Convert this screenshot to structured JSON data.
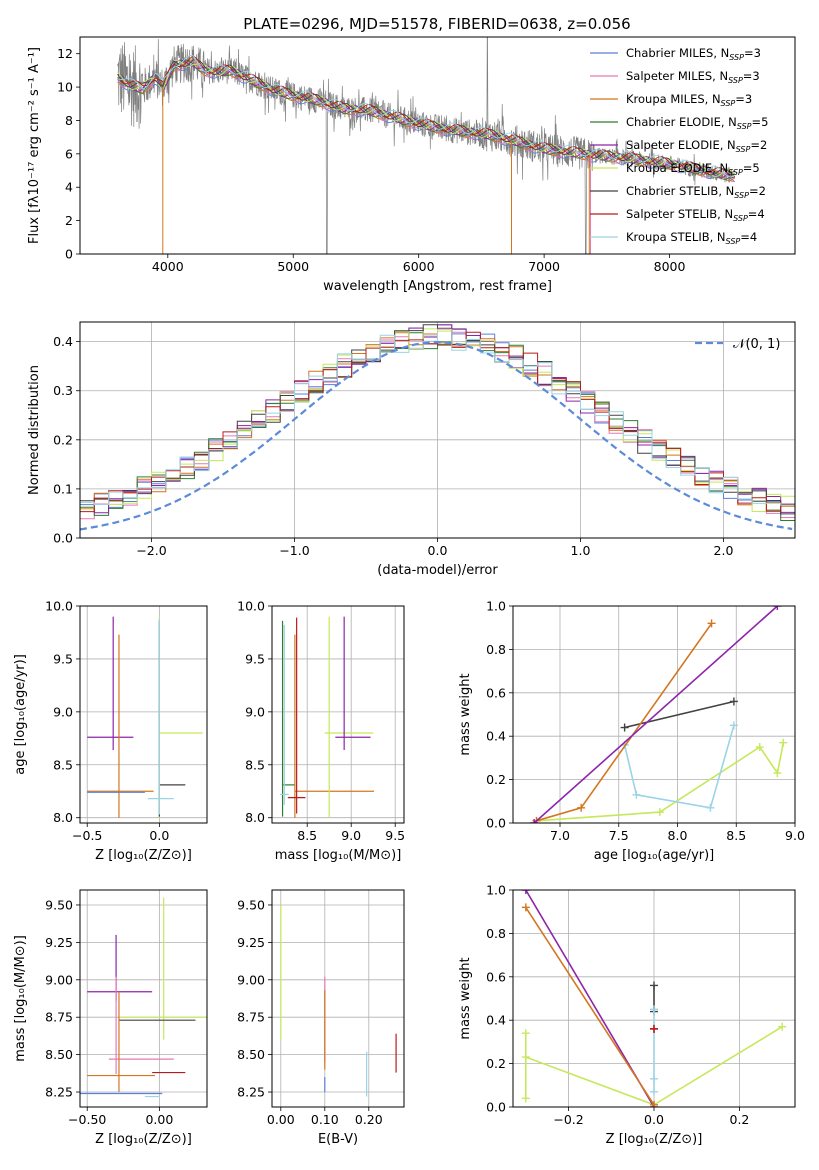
{
  "figure_title": "PLATE=0296, MJD=51578, FIBERID=0638, z=0.056",
  "colors": {
    "Chabrier MILES": "#5b7fd9",
    "Salpeter MILES": "#e37ab9",
    "Kroupa MILES": "#d4761f",
    "Chabrier ELODIE": "#2e7d32",
    "Salpeter ELODIE": "#8e24aa",
    "Kroupa ELODIE": "#c6e85a",
    "Chabrier STELIB": "#424242",
    "Salpeter STELIB": "#b71c1c",
    "Kroupa STELIB": "#9ad4e6",
    "data": "#808080",
    "normal": "#5b8bd9"
  },
  "chart_data": [
    {
      "id": "spectrum",
      "type": "line",
      "xlabel": "wavelength [Angstrom, rest frame]",
      "ylabel": "Flux [fλ10⁻¹⁷ erg cm⁻² s⁻¹ A⁻¹]",
      "xlim": [
        3300,
        9000
      ],
      "ylim": [
        0,
        13
      ],
      "xticks": [
        4000,
        5000,
        6000,
        7000,
        8000
      ],
      "yticks": [
        0,
        2,
        4,
        6,
        8,
        10,
        12
      ],
      "legend_position": "top-right",
      "legend": [
        {
          "label": "Chabrier MILES, N",
          "sub": "SSP",
          "tail": "=3",
          "key": "Chabrier MILES"
        },
        {
          "label": "Salpeter MILES, N",
          "sub": "SSP",
          "tail": "=3",
          "key": "Salpeter MILES"
        },
        {
          "label": "Kroupa MILES, N",
          "sub": "SSP",
          "tail": "=3",
          "key": "Kroupa MILES"
        },
        {
          "label": "Chabrier ELODIE, N",
          "sub": "SSP",
          "tail": "=5",
          "key": "Chabrier ELODIE"
        },
        {
          "label": "Salpeter ELODIE, N",
          "sub": "SSP",
          "tail": "=2",
          "key": "Salpeter ELODIE"
        },
        {
          "label": "Kroupa ELODIE, N",
          "sub": "SSP",
          "tail": "=5",
          "key": "Kroupa ELODIE"
        },
        {
          "label": "Chabrier STELIB, N",
          "sub": "SSP",
          "tail": "=2",
          "key": "Chabrier STELIB"
        },
        {
          "label": "Salpeter STELIB, N",
          "sub": "SSP",
          "tail": "=4",
          "key": "Salpeter STELIB"
        },
        {
          "label": "Kroupa STELIB, N",
          "sub": "SSP",
          "tail": "=4",
          "key": "Kroupa STELIB"
        }
      ],
      "continuum": [
        [
          3600,
          10.6
        ],
        [
          3700,
          10.1
        ],
        [
          3800,
          9.9
        ],
        [
          3900,
          10.6
        ],
        [
          3960,
          10.0
        ],
        [
          4050,
          11.3
        ],
        [
          4200,
          11.5
        ],
        [
          4300,
          11.0
        ],
        [
          4400,
          10.9
        ],
        [
          4500,
          11.0
        ],
        [
          4700,
          10.3
        ],
        [
          4850,
          9.8
        ],
        [
          5000,
          9.5
        ],
        [
          5200,
          9.2
        ],
        [
          5400,
          8.7
        ],
        [
          5600,
          8.6
        ],
        [
          5800,
          8.2
        ],
        [
          6000,
          7.8
        ],
        [
          6200,
          7.5
        ],
        [
          6400,
          7.3
        ],
        [
          6600,
          7.1
        ],
        [
          6800,
          6.7
        ],
        [
          7000,
          6.3
        ],
        [
          7200,
          6.1
        ],
        [
          7400,
          5.9
        ],
        [
          7600,
          5.8
        ],
        [
          7800,
          5.6
        ],
        [
          8000,
          5.4
        ],
        [
          8200,
          5.1
        ],
        [
          8400,
          4.8
        ],
        [
          8500,
          4.7
        ]
      ]
    },
    {
      "id": "residuals",
      "type": "bar",
      "xlabel": "(data-model)/error",
      "ylabel": "Normed distribution",
      "xlim": [
        -2.5,
        2.5
      ],
      "ylim": [
        0,
        0.44
      ],
      "xticks": [
        -2,
        -1,
        0,
        1,
        2
      ],
      "yticks": [
        0.0,
        0.1,
        0.2,
        0.3,
        0.4
      ],
      "legend_label": "𝒩(0, 1)",
      "legend_position": "top-right",
      "bin_width": 0.1
    },
    {
      "id": "age_vs_Z",
      "type": "scatter",
      "xlabel": "Z [log₁₀(Z/Z⊙)]",
      "ylabel": "age  [log₁₀(age/yr)]",
      "xlim": [
        -0.55,
        0.33
      ],
      "ylim": [
        7.95,
        10.0
      ],
      "xticks": [
        -0.5,
        0.0
      ],
      "yticks": [
        8.0,
        8.5,
        9.0,
        9.5,
        10.0
      ],
      "points": [
        {
          "key": "Salpeter ELODIE",
          "x": -0.32,
          "y": 8.76,
          "xerr": [
            0.18,
            0.14
          ],
          "yerr": [
            0.12,
            1.14
          ]
        },
        {
          "key": "Kroupa MILES",
          "x": -0.28,
          "y": 8.25,
          "xerr": [
            0.22,
            0.24
          ],
          "yerr": [
            0.25,
            1.48
          ]
        },
        {
          "key": "Chabrier MILES",
          "x": -0.3,
          "y": 8.24,
          "xerr": [
            0.2,
            0.2
          ],
          "yerr": [
            0.0,
            0.0
          ]
        },
        {
          "key": "Kroupa ELODIE",
          "x": 0.0,
          "y": 8.8,
          "xerr": [
            0.0,
            0.3
          ],
          "yerr": [
            0.8,
            1.1
          ]
        },
        {
          "key": "Chabrier STELIB",
          "x": 0.0,
          "y": 8.31,
          "xerr": [
            0.0,
            0.18
          ],
          "yerr": [
            0.3,
            1.55
          ]
        },
        {
          "key": "Kroupa STELIB",
          "x": 0.0,
          "y": 8.18,
          "xerr": [
            0.08,
            0.1
          ],
          "yerr": [
            0.15,
            1.7
          ]
        }
      ]
    },
    {
      "id": "age_vs_mass",
      "type": "scatter",
      "xlabel": "mass [log₁₀(M/M⊙)]",
      "ylabel": "",
      "xlim": [
        8.1,
        9.6
      ],
      "ylim": [
        7.95,
        10.0
      ],
      "xticks": [
        8.5,
        9.0,
        9.5
      ],
      "yticks": [
        8.0,
        8.5,
        9.0,
        9.5,
        10.0
      ],
      "points": [
        {
          "key": "Chabrier ELODIE",
          "x": 8.22,
          "y": 8.31,
          "xerr": [
            0.0,
            0.14
          ],
          "yerr": [
            0.3,
            1.55
          ]
        },
        {
          "key": "Kroupa MILES",
          "x": 8.36,
          "y": 8.25,
          "xerr": [
            0.0,
            0.9
          ],
          "yerr": [
            0.25,
            1.48
          ]
        },
        {
          "key": "Salpeter STELIB",
          "x": 8.38,
          "y": 8.19,
          "xerr": [
            0.1,
            0.1
          ],
          "yerr": [
            0.15,
            1.7
          ]
        },
        {
          "key": "Kroupa ELODIE",
          "x": 8.75,
          "y": 8.8,
          "xerr": [
            0.05,
            0.5
          ],
          "yerr": [
            0.8,
            1.1
          ]
        },
        {
          "key": "Salpeter ELODIE",
          "x": 8.92,
          "y": 8.76,
          "xerr": [
            0.1,
            0.3
          ],
          "yerr": [
            0.12,
            1.14
          ]
        },
        {
          "key": "Kroupa STELIB",
          "x": 8.24,
          "y": 8.22,
          "xerr": [
            0.05,
            0.05
          ],
          "yerr": [
            0.1,
            1.6
          ]
        }
      ]
    },
    {
      "id": "massweight_vs_age",
      "type": "line",
      "xlabel": "age  [log₁₀(age/yr)]",
      "ylabel": "mass weight",
      "xlim": [
        6.6,
        9.0
      ],
      "ylim": [
        0,
        1.0
      ],
      "xticks": [
        7.0,
        7.5,
        8.0,
        8.5,
        9.0
      ],
      "yticks": [
        0.0,
        0.2,
        0.4,
        0.6,
        0.8,
        1.0
      ],
      "series": [
        {
          "key": "Kroupa ELODIE",
          "x": [
            6.8,
            7.85,
            8.7,
            8.85,
            8.9
          ],
          "y": [
            0.01,
            0.05,
            0.35,
            0.23,
            0.37
          ]
        },
        {
          "key": "Kroupa STELIB",
          "x": [
            7.55,
            7.65,
            8.28,
            8.48
          ],
          "y": [
            0.36,
            0.13,
            0.07,
            0.45
          ]
        },
        {
          "key": "Chabrier STELIB",
          "x": [
            7.55,
            8.48
          ],
          "y": [
            0.44,
            0.56
          ]
        },
        {
          "key": "Kroupa MILES",
          "x": [
            6.8,
            7.18,
            8.29
          ],
          "y": [
            0.01,
            0.07,
            0.92
          ]
        },
        {
          "key": "Salpeter ELODIE",
          "x": [
            6.78,
            8.85
          ],
          "y": [
            0.0,
            1.0
          ]
        }
      ]
    },
    {
      "id": "mass_vs_Z",
      "type": "scatter",
      "xlabel": "Z [log₁₀(Z/Z⊙)]",
      "ylabel": "mass [log₁₀(M/M⊙)]",
      "xlim": [
        -0.55,
        0.33
      ],
      "ylim": [
        8.15,
        9.6
      ],
      "xticks": [
        -0.5,
        0.0
      ],
      "yticks": [
        8.25,
        8.5,
        8.75,
        9.0,
        9.25,
        9.5
      ],
      "points": [
        {
          "key": "Salpeter ELODIE",
          "x": -0.3,
          "y": 8.92,
          "xerr": [
            0.2,
            0.25
          ],
          "yerr": [
            0.06,
            0.38
          ]
        },
        {
          "key": "Kroupa ELODIE",
          "x": 0.03,
          "y": 8.75,
          "xerr": [
            0.3,
            0.3
          ],
          "yerr": [
            0.15,
            0.8
          ]
        },
        {
          "key": "Chabrier STELIB",
          "x": 0.0,
          "y": 8.73,
          "xerr": [
            0.28,
            0.25
          ],
          "yerr": [
            0.0,
            0.0
          ]
        },
        {
          "key": "Salpeter MILES",
          "x": -0.3,
          "y": 8.47,
          "xerr": [
            0.05,
            0.4
          ],
          "yerr": [
            0.1,
            0.55
          ]
        },
        {
          "key": "Salpeter STELIB",
          "x": 0.0,
          "y": 8.38,
          "xerr": [
            0.05,
            0.18
          ],
          "yerr": [
            0.0,
            0.0
          ]
        },
        {
          "key": "Kroupa MILES",
          "x": -0.28,
          "y": 8.36,
          "xerr": [
            0.22,
            0.25
          ],
          "yerr": [
            0.11,
            0.56
          ]
        },
        {
          "key": "Chabrier MILES",
          "x": -0.28,
          "y": 8.24,
          "xerr": [
            0.28,
            0.3
          ],
          "yerr": [
            0.0,
            0.0
          ]
        },
        {
          "key": "Kroupa STELIB",
          "x": 0.0,
          "y": 8.22,
          "xerr": [
            0.1,
            0.0
          ],
          "yerr": [
            0.0,
            0.0
          ]
        }
      ]
    },
    {
      "id": "mass_vs_ebv",
      "type": "scatter",
      "xlabel": "E(B-V)",
      "ylabel": "",
      "xlim": [
        -0.02,
        0.28
      ],
      "ylim": [
        8.15,
        9.6
      ],
      "xticks": [
        0.0,
        0.1,
        0.2
      ],
      "yticks": [
        8.25,
        8.5,
        8.75,
        9.0,
        9.25,
        9.5
      ],
      "points": [
        {
          "key": "Kroupa ELODIE",
          "x": 0.0,
          "y": 8.8,
          "yerr": [
            0.2,
            0.7
          ]
        },
        {
          "key": "Salpeter MILES",
          "x": 0.1,
          "y": 8.5,
          "yerr": [
            0.05,
            0.52
          ]
        },
        {
          "key": "Kroupa MILES",
          "x": 0.1,
          "y": 8.5,
          "yerr": [
            0.1,
            0.43
          ]
        },
        {
          "key": "Chabrier MILES",
          "x": 0.1,
          "y": 8.3,
          "yerr": [
            0.05,
            0.05
          ]
        },
        {
          "key": "Kroupa STELIB",
          "x": 0.195,
          "y": 8.3,
          "yerr": [
            0.08,
            0.22
          ]
        },
        {
          "key": "Salpeter STELIB",
          "x": 0.262,
          "y": 8.5,
          "yerr": [
            0.12,
            0.14
          ]
        }
      ]
    },
    {
      "id": "massweight_vs_Z",
      "type": "line",
      "xlabel": "Z [log₁₀(Z/Z⊙)]",
      "ylabel": "mass weight",
      "xlim": [
        -0.33,
        0.33
      ],
      "ylim": [
        0,
        1.0
      ],
      "xticks": [
        -0.2,
        0.0,
        0.2
      ],
      "yticks": [
        0.0,
        0.2,
        0.4,
        0.6,
        0.8,
        1.0
      ],
      "series": [
        {
          "key": "Kroupa ELODIE",
          "x": [
            -0.3,
            -0.3,
            -0.3,
            0.0,
            0.3
          ],
          "y": [
            0.04,
            0.34,
            0.23,
            0.01,
            0.37
          ]
        },
        {
          "key": "Salpeter ELODIE",
          "x": [
            -0.3,
            0.0
          ],
          "y": [
            1.0,
            0.0
          ]
        },
        {
          "key": "Kroupa MILES",
          "x": [
            -0.3,
            0.0
          ],
          "y": [
            0.92,
            0.01
          ]
        },
        {
          "key": "Chabrier STELIB",
          "x": [
            0.0,
            0.0
          ],
          "y": [
            0.44,
            0.56
          ]
        },
        {
          "key": "Kroupa STELIB",
          "x": [
            0.0,
            0.0,
            0.0
          ],
          "y": [
            0.07,
            0.13,
            0.45
          ]
        },
        {
          "key": "Salpeter STELIB",
          "x": [
            0.0,
            0.0
          ],
          "y": [
            0.36,
            0.36
          ]
        }
      ]
    }
  ]
}
